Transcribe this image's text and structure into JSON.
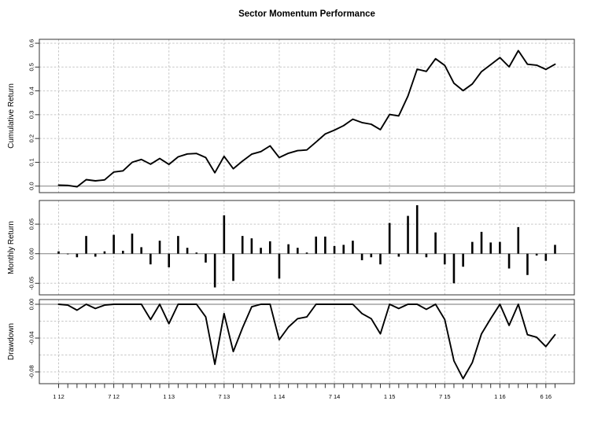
{
  "title": "Sector Momentum Performance",
  "x_axis": {
    "months": [
      "2012-01",
      "2012-02",
      "2012-03",
      "2012-04",
      "2012-05",
      "2012-06",
      "2012-07",
      "2012-08",
      "2012-09",
      "2012-10",
      "2012-11",
      "2012-12",
      "2013-01",
      "2013-02",
      "2013-03",
      "2013-04",
      "2013-05",
      "2013-06",
      "2013-07",
      "2013-08",
      "2013-09",
      "2013-10",
      "2013-11",
      "2013-12",
      "2014-01",
      "2014-02",
      "2014-03",
      "2014-04",
      "2014-05",
      "2014-06",
      "2014-07",
      "2014-08",
      "2014-09",
      "2014-10",
      "2014-11",
      "2014-12",
      "2015-01",
      "2015-02",
      "2015-03",
      "2015-04",
      "2015-05",
      "2015-06",
      "2015-07",
      "2015-08",
      "2015-09",
      "2015-10",
      "2015-11",
      "2015-12",
      "2016-01",
      "2016-02",
      "2016-03",
      "2016-04",
      "2016-05",
      "2016-06",
      "2016-07"
    ],
    "tick_labels": [
      "1 12",
      "7 12",
      "1 13",
      "7 13",
      "1 14",
      "7 14",
      "1 15",
      "7 15",
      "1 16",
      "6 16"
    ],
    "tick_month_indices": [
      0,
      6,
      12,
      18,
      24,
      30,
      36,
      42,
      48,
      53
    ]
  },
  "chart_data": [
    {
      "type": "line",
      "name": "cumulative-return",
      "title": "Sector Momentum Performance",
      "ylabel": "Cumulative Return",
      "ylim": [
        -0.027,
        0.617
      ],
      "ytick_values": [
        0.0,
        0.1,
        0.2,
        0.3,
        0.4,
        0.5,
        0.6
      ],
      "ytick_labels": [
        "0.0",
        "0.1",
        "0.2",
        "0.3",
        "0.4",
        "0.5",
        "0.6"
      ],
      "grid_dashed_at": [
        0.1,
        0.2,
        0.3,
        0.4,
        0.5,
        0.6
      ],
      "grid": true,
      "legend_position": "none",
      "values": [
        0.004,
        0.003,
        -0.003,
        0.027,
        0.022,
        0.026,
        0.059,
        0.064,
        0.1,
        0.112,
        0.092,
        0.116,
        0.091,
        0.123,
        0.135,
        0.137,
        0.12,
        0.056,
        0.125,
        0.073,
        0.105,
        0.134,
        0.145,
        0.169,
        0.12,
        0.138,
        0.149,
        0.152,
        0.185,
        0.219,
        0.235,
        0.254,
        0.281,
        0.267,
        0.26,
        0.237,
        0.301,
        0.295,
        0.378,
        0.491,
        0.482,
        0.535,
        0.507,
        0.432,
        0.401,
        0.429,
        0.481,
        0.51,
        0.54,
        0.501,
        0.569,
        0.512,
        0.508,
        0.49,
        0.512
      ]
    },
    {
      "type": "bar",
      "name": "monthly-return",
      "ylabel": "Monthly Return",
      "ylim": [
        -0.07,
        0.09
      ],
      "ytick_values": [
        0.05,
        0.0,
        -0.05
      ],
      "ytick_labels": [
        "0.05",
        "0.00",
        "-0.05"
      ],
      "grid_dashed_at": [
        0.05,
        -0.05
      ],
      "grid": true,
      "legend_position": "none",
      "values": [
        0.004,
        -0.001,
        -0.006,
        0.03,
        -0.005,
        0.004,
        0.032,
        0.005,
        0.034,
        0.011,
        -0.018,
        0.022,
        -0.023,
        0.03,
        0.01,
        0.002,
        -0.015,
        -0.057,
        0.065,
        -0.046,
        0.03,
        0.026,
        0.01,
        0.021,
        -0.042,
        0.016,
        0.01,
        0.002,
        0.029,
        0.029,
        0.013,
        0.015,
        0.022,
        -0.011,
        -0.006,
        -0.018,
        0.052,
        -0.005,
        0.064,
        0.082,
        -0.006,
        0.036,
        -0.018,
        -0.05,
        -0.022,
        0.02,
        0.037,
        0.019,
        0.02,
        -0.025,
        0.045,
        -0.036,
        -0.003,
        -0.012,
        0.015
      ]
    },
    {
      "type": "line",
      "name": "drawdown",
      "ylabel": "Drawdown",
      "ylim": [
        -0.094,
        0.006
      ],
      "ytick_values": [
        0.0,
        -0.04,
        -0.08
      ],
      "ytick_labels": [
        "0.00",
        "-0.04",
        "-0.08"
      ],
      "grid_dashed_at": [
        -0.02,
        -0.04,
        -0.06,
        -0.08
      ],
      "grid": true,
      "legend_position": "none",
      "values": [
        0.0,
        -0.001,
        -0.007,
        0.0,
        -0.005,
        -0.001,
        0.0,
        0.0,
        0.0,
        0.0,
        -0.018,
        0.0,
        -0.023,
        0.0,
        0.0,
        0.0,
        -0.015,
        -0.071,
        -0.011,
        -0.056,
        -0.028,
        -0.003,
        0.0,
        0.0,
        -0.042,
        -0.027,
        -0.017,
        -0.015,
        0.0,
        0.0,
        0.0,
        0.0,
        0.0,
        -0.011,
        -0.017,
        -0.035,
        0.0,
        -0.005,
        0.0,
        0.0,
        -0.006,
        0.0,
        -0.018,
        -0.067,
        -0.088,
        -0.069,
        -0.035,
        -0.017,
        0.0,
        -0.025,
        0.0,
        -0.036,
        -0.039,
        -0.05,
        -0.036
      ]
    }
  ],
  "colors": {
    "series": "#000000",
    "grid": "#c6c6c6",
    "zero_line": "#8f8f8f",
    "border": "#333333",
    "text": "#000000",
    "background": "#ffffff"
  }
}
